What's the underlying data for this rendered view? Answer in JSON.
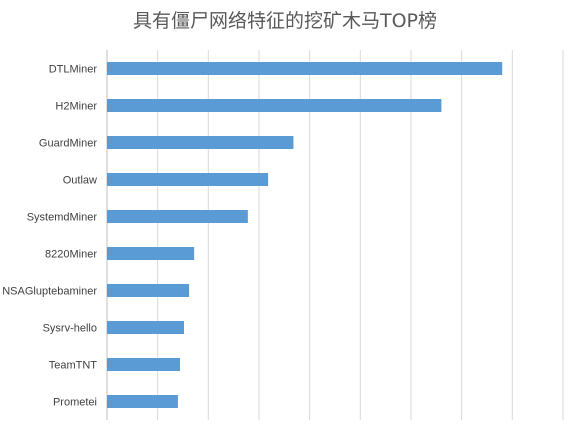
{
  "chart_data": {
    "type": "bar",
    "orientation": "horizontal",
    "title": "具有僵尸网络特征的挖矿木马TOP榜",
    "xlabel": "",
    "ylabel": "",
    "categories": [
      "DTLMiner",
      "H2Miner",
      "GuardMiner",
      "Outlaw",
      "SystemdMiner",
      "8220Miner",
      "NSAGluptebaminer",
      "Sysrv-hello",
      "TeamTNT",
      "Prometei"
    ],
    "values": [
      39,
      33,
      18.4,
      15.9,
      13.9,
      8.6,
      8.1,
      7.6,
      7.2,
      7.0
    ],
    "xlim": [
      0,
      45
    ],
    "grid": true,
    "legend": "none",
    "bar_color": "#5B9BD5",
    "grid_color": "#D9D9D9"
  }
}
